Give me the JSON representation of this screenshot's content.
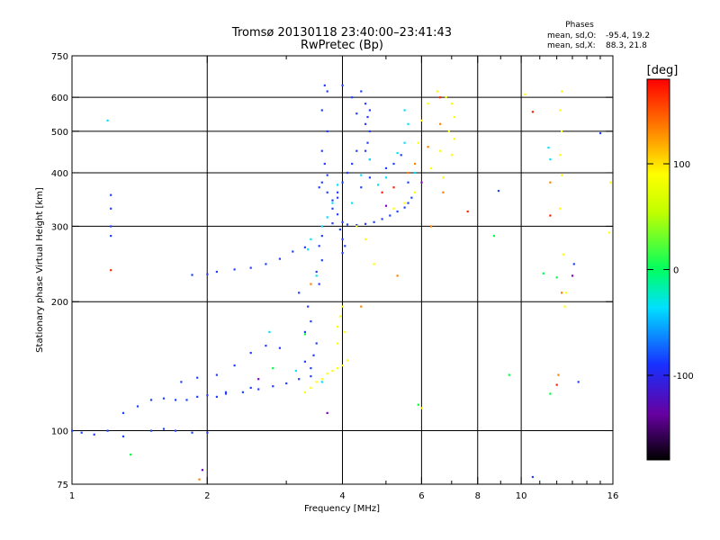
{
  "chart_data": {
    "type": "scatter",
    "title": "Tromsø 20130118 23:40:00–23:41:43",
    "subtitle": "RwPretec (Bp)",
    "xlabel": "Frequency [MHz]",
    "ylabel": "Stationary phase Virtual Height [km]",
    "x_scale": "log",
    "y_scale": "log",
    "xlim": [
      1,
      16
    ],
    "ylim": [
      75,
      750
    ],
    "grid": true,
    "x_ticks": [
      1,
      2,
      4,
      6,
      8,
      10,
      16
    ],
    "x_tick_labels": [
      "1",
      "2",
      "4",
      "6",
      "8",
      "10",
      "16"
    ],
    "x_minor_ticks": [
      3,
      5,
      7,
      9,
      11,
      12,
      13,
      14,
      15
    ],
    "x_grid": [
      2,
      4,
      6,
      8,
      10
    ],
    "y_ticks": [
      75,
      100,
      200,
      300,
      400,
      500,
      600,
      750
    ],
    "y_tick_labels": [
      "75",
      "100",
      "200",
      "300",
      "400",
      "500",
      "600",
      "750"
    ],
    "y_grid": [
      100,
      200,
      300,
      400,
      500,
      600
    ],
    "colorbar": {
      "label": "[deg]",
      "range": [
        -180,
        180
      ],
      "ticks": [
        100,
        0,
        -100
      ],
      "tick_labels": [
        "100",
        "0",
        "-100"
      ]
    },
    "phase_stats": {
      "title": "Phases",
      "o_label": "mean, sd,O:",
      "o_values": "-95.4, 19.2",
      "x_label": "mean, sd,X:",
      "x_values": "88.3, 21.8"
    },
    "series": [
      {
        "color": "#2040ff",
        "points": [
          [
            1.0,
            100
          ],
          [
            1.05,
            99
          ],
          [
            1.12,
            98
          ],
          [
            1.2,
            100
          ],
          [
            1.3,
            97
          ],
          [
            1.5,
            100
          ],
          [
            1.6,
            101
          ],
          [
            1.7,
            100
          ],
          [
            1.85,
            99
          ],
          [
            2.0,
            99
          ],
          [
            1.3,
            110
          ],
          [
            1.4,
            114
          ],
          [
            1.5,
            118
          ],
          [
            1.6,
            119
          ],
          [
            1.7,
            118
          ],
          [
            1.8,
            118
          ],
          [
            1.9,
            120
          ],
          [
            2.0,
            121
          ],
          [
            2.1,
            120
          ],
          [
            2.2,
            122
          ],
          [
            2.4,
            123
          ],
          [
            2.6,
            125
          ],
          [
            2.8,
            127
          ],
          [
            3.0,
            129
          ],
          [
            3.2,
            132
          ],
          [
            3.4,
            134
          ],
          [
            1.75,
            130
          ],
          [
            1.9,
            133
          ],
          [
            2.1,
            135
          ],
          [
            2.3,
            142
          ],
          [
            2.5,
            152
          ],
          [
            2.7,
            158
          ],
          [
            2.9,
            156
          ],
          [
            2.2,
            123
          ],
          [
            2.5,
            126
          ],
          [
            1.85,
            231
          ],
          [
            2.0,
            232
          ],
          [
            2.1,
            235
          ],
          [
            2.3,
            238
          ],
          [
            2.5,
            240
          ],
          [
            2.7,
            245
          ],
          [
            2.9,
            252
          ],
          [
            3.1,
            262
          ],
          [
            3.3,
            268
          ],
          [
            3.2,
            210
          ],
          [
            3.35,
            195
          ],
          [
            3.4,
            180
          ],
          [
            3.3,
            170
          ],
          [
            3.5,
            160
          ],
          [
            3.45,
            150
          ],
          [
            3.3,
            145
          ],
          [
            3.4,
            140
          ],
          [
            3.55,
            220
          ],
          [
            3.5,
            235
          ],
          [
            3.6,
            250
          ],
          [
            3.55,
            270
          ],
          [
            3.6,
            285
          ],
          [
            3.65,
            640
          ],
          [
            3.7,
            620
          ],
          [
            3.6,
            560
          ],
          [
            3.7,
            500
          ],
          [
            3.6,
            450
          ],
          [
            3.65,
            420
          ],
          [
            3.7,
            395
          ],
          [
            3.6,
            380
          ],
          [
            3.55,
            370
          ],
          [
            3.7,
            360
          ],
          [
            3.8,
            330
          ],
          [
            3.9,
            320
          ],
          [
            4.0,
            307
          ],
          [
            4.1,
            303
          ],
          [
            4.3,
            302
          ],
          [
            4.5,
            304
          ],
          [
            4.7,
            307
          ],
          [
            4.9,
            312
          ],
          [
            5.1,
            318
          ],
          [
            5.3,
            325
          ],
          [
            5.5,
            332
          ],
          [
            5.6,
            340
          ],
          [
            5.7,
            350
          ],
          [
            3.8,
            305
          ],
          [
            3.95,
            295
          ],
          [
            4.0,
            280
          ],
          [
            4.05,
            270
          ],
          [
            4.0,
            260
          ],
          [
            4.5,
            580
          ],
          [
            4.6,
            560
          ],
          [
            4.55,
            540
          ],
          [
            4.5,
            520
          ],
          [
            4.6,
            500
          ],
          [
            4.55,
            470
          ],
          [
            4.5,
            450
          ],
          [
            4.6,
            430
          ],
          [
            4.4,
            620
          ],
          [
            4.0,
            640
          ],
          [
            4.2,
            600
          ],
          [
            4.3,
            550
          ],
          [
            4.3,
            450
          ],
          [
            4.2,
            420
          ],
          [
            4.1,
            400
          ],
          [
            4.0,
            380
          ],
          [
            3.9,
            360
          ],
          [
            3.8,
            345
          ],
          [
            3.9,
            350
          ],
          [
            4.4,
            370
          ],
          [
            4.6,
            390
          ],
          [
            5.0,
            410
          ],
          [
            5.2,
            420
          ],
          [
            5.4,
            440
          ],
          [
            5.6,
            380
          ],
          [
            1.22,
            355
          ],
          [
            1.22,
            330
          ],
          [
            1.22,
            300
          ],
          [
            1.22,
            285
          ],
          [
            15.0,
            495
          ],
          [
            13.4,
            130
          ],
          [
            13.1,
            245
          ],
          [
            10.6,
            78
          ],
          [
            8.9,
            363
          ]
        ]
      },
      {
        "color": "#00e0ff",
        "points": [
          [
            3.35,
            265
          ],
          [
            3.5,
            230
          ],
          [
            3.6,
            130
          ],
          [
            3.4,
            280
          ],
          [
            3.6,
            300
          ],
          [
            3.7,
            315
          ],
          [
            3.8,
            340
          ],
          [
            3.9,
            375
          ],
          [
            4.2,
            340
          ],
          [
            4.4,
            395
          ],
          [
            4.6,
            430
          ],
          [
            4.8,
            375
          ],
          [
            5.0,
            390
          ],
          [
            5.3,
            445
          ],
          [
            5.5,
            470
          ],
          [
            5.6,
            520
          ],
          [
            5.5,
            560
          ],
          [
            5.8,
            400
          ],
          [
            11.5,
            458
          ],
          [
            11.6,
            430
          ],
          [
            1.2,
            530
          ],
          [
            3.15,
            138
          ],
          [
            2.75,
            170
          ]
        ]
      },
      {
        "color": "#ffff00",
        "points": [
          [
            3.3,
            123
          ],
          [
            3.4,
            126
          ],
          [
            3.5,
            130
          ],
          [
            3.6,
            132
          ],
          [
            3.7,
            136
          ],
          [
            3.8,
            138
          ],
          [
            3.9,
            140
          ],
          [
            4.0,
            142
          ],
          [
            4.1,
            146
          ],
          [
            3.9,
            175
          ],
          [
            3.95,
            185
          ],
          [
            4.0,
            195
          ],
          [
            4.05,
            170
          ],
          [
            3.9,
            160
          ],
          [
            4.3,
            300
          ],
          [
            4.5,
            280
          ],
          [
            5.2,
            330
          ],
          [
            5.5,
            340
          ],
          [
            5.8,
            360
          ],
          [
            6.0,
            380
          ],
          [
            6.3,
            410
          ],
          [
            6.6,
            450
          ],
          [
            6.9,
            500
          ],
          [
            7.1,
            540
          ],
          [
            7.0,
            580
          ],
          [
            6.8,
            600
          ],
          [
            6.5,
            620
          ],
          [
            6.2,
            580
          ],
          [
            6.0,
            530
          ],
          [
            5.9,
            470
          ],
          [
            6.7,
            390
          ],
          [
            7.0,
            440
          ],
          [
            7.1,
            480
          ],
          [
            12.3,
            620
          ],
          [
            12.2,
            560
          ],
          [
            12.3,
            500
          ],
          [
            12.2,
            440
          ],
          [
            12.3,
            395
          ],
          [
            12.2,
            330
          ],
          [
            12.4,
            258
          ],
          [
            12.6,
            210
          ],
          [
            12.5,
            195
          ],
          [
            10.2,
            610
          ],
          [
            15.8,
            380
          ],
          [
            15.7,
            290
          ],
          [
            5.9,
            115
          ],
          [
            6.0,
            113
          ],
          [
            4.7,
            245
          ]
        ]
      },
      {
        "color": "#00ff40",
        "points": [
          [
            1.35,
            88
          ],
          [
            2.8,
            140
          ],
          [
            5.9,
            115
          ],
          [
            11.2,
            233
          ],
          [
            12.0,
            228
          ],
          [
            9.4,
            135
          ],
          [
            11.6,
            122
          ],
          [
            3.3,
            168
          ],
          [
            8.7,
            285
          ]
        ]
      },
      {
        "color": "#ff8000",
        "points": [
          [
            6.3,
            300
          ],
          [
            6.7,
            360
          ],
          [
            5.6,
            400
          ],
          [
            5.8,
            420
          ],
          [
            6.2,
            460
          ],
          [
            6.6,
            520
          ],
          [
            5.3,
            230
          ],
          [
            11.6,
            380
          ],
          [
            12.3,
            210
          ],
          [
            4.4,
            195
          ],
          [
            3.4,
            220
          ],
          [
            12.1,
            135
          ],
          [
            1.92,
            77
          ]
        ]
      },
      {
        "color": "#ff2000",
        "points": [
          [
            1.22,
            237
          ],
          [
            7.6,
            325
          ],
          [
            4.9,
            360
          ],
          [
            5.2,
            370
          ],
          [
            11.6,
            318
          ],
          [
            12.0,
            128
          ],
          [
            10.6,
            555
          ],
          [
            6.6,
            600
          ]
        ]
      },
      {
        "color": "#8000c0",
        "points": [
          [
            1.95,
            81
          ],
          [
            13.0,
            230
          ],
          [
            2.6,
            132
          ],
          [
            3.7,
            110
          ],
          [
            5.0,
            335
          ],
          [
            6.0,
            380
          ]
        ]
      }
    ]
  }
}
